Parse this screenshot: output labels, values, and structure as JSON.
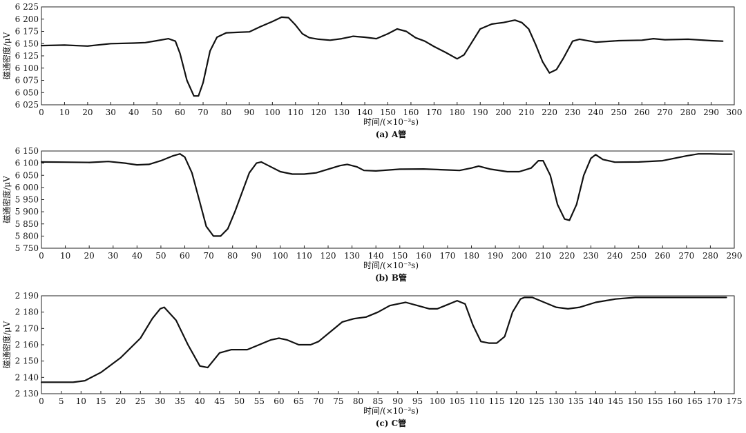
{
  "chart_data": [
    {
      "type": "line",
      "caption": "(a) A管",
      "xlabel": "时间/(×10⁻³s)",
      "ylabel": "磁通密度/μV",
      "xlim": [
        0,
        300
      ],
      "ylim": [
        6025,
        6225
      ],
      "x_ticks": [
        0,
        10,
        20,
        30,
        40,
        50,
        60,
        70,
        80,
        90,
        100,
        110,
        120,
        130,
        140,
        150,
        160,
        170,
        180,
        190,
        200,
        210,
        220,
        230,
        240,
        250,
        260,
        270,
        280,
        290,
        300
      ],
      "x_tick_labels": [
        "0",
        "10",
        "20",
        "30",
        "40",
        "50",
        "60",
        "70",
        "80",
        "90",
        "100",
        "110",
        "120",
        "130",
        "140",
        "150",
        "160",
        "170",
        "180",
        "190",
        "200",
        "210",
        "220",
        "230",
        "240",
        "250",
        "260",
        "270",
        "280",
        "290",
        "300"
      ],
      "y_ticks": [
        6025,
        6050,
        6075,
        6100,
        6125,
        6150,
        6175,
        6200,
        6225
      ],
      "y_tick_labels": [
        "6 025",
        "6 050",
        "6 075",
        "6 100",
        "6 125",
        "6 150",
        "6 175",
        "6 200",
        "6 225"
      ],
      "grid": false,
      "series": [
        {
          "x": [
            0,
            10,
            20,
            30,
            40,
            45,
            50,
            55,
            58,
            60,
            63,
            66,
            68,
            70,
            73,
            76,
            80,
            85,
            90,
            95,
            100,
            104,
            107,
            110,
            113,
            116,
            120,
            125,
            130,
            135,
            140,
            145,
            150,
            154,
            158,
            162,
            166,
            170,
            175,
            180,
            183,
            186,
            190,
            195,
            200,
            205,
            208,
            211,
            214,
            217,
            220,
            223,
            226,
            230,
            233,
            240,
            250,
            260,
            265,
            270,
            280,
            290,
            295
          ],
          "y": [
            6146,
            6147,
            6145,
            6150,
            6151,
            6152,
            6156,
            6160,
            6155,
            6130,
            6075,
            6043,
            6043,
            6070,
            6135,
            6163,
            6172,
            6173,
            6174,
            6185,
            6195,
            6204,
            6203,
            6188,
            6170,
            6162,
            6159,
            6157,
            6160,
            6165,
            6163,
            6160,
            6170,
            6180,
            6175,
            6162,
            6155,
            6144,
            6132,
            6119,
            6127,
            6150,
            6180,
            6190,
            6193,
            6198,
            6193,
            6180,
            6148,
            6113,
            6090,
            6097,
            6120,
            6155,
            6159,
            6153,
            6156,
            6157,
            6160,
            6158,
            6159,
            6156,
            6155
          ]
        }
      ]
    },
    {
      "type": "line",
      "caption": "(b) B管",
      "xlabel": "时间/(×10⁻³s)",
      "ylabel": "磁通密度/μV",
      "xlim": [
        0,
        290
      ],
      "ylim": [
        5750,
        6150
      ],
      "x_ticks": [
        0,
        10,
        20,
        30,
        40,
        50,
        60,
        70,
        80,
        90,
        100,
        110,
        120,
        130,
        140,
        150,
        160,
        170,
        180,
        190,
        200,
        210,
        220,
        230,
        240,
        250,
        260,
        270,
        280,
        290
      ],
      "x_tick_labels": [
        "0",
        "10",
        "20",
        "30",
        "40",
        "50",
        "60",
        "70",
        "80",
        "90",
        "100",
        "110",
        "120",
        "130",
        "140",
        "150",
        "160",
        "170",
        "180",
        "190",
        "200",
        "210",
        "220",
        "230",
        "240",
        "250",
        "260",
        "270",
        "280",
        "290"
      ],
      "y_ticks": [
        5750,
        5800,
        5850,
        5900,
        5950,
        6000,
        6050,
        6100,
        6150
      ],
      "y_tick_labels": [
        "5 750",
        "5 800",
        "5 850",
        "5 900",
        "5 950",
        "6 000",
        "6 050",
        "6 100",
        "6 150"
      ],
      "grid": false,
      "series": [
        {
          "x": [
            0,
            10,
            20,
            28,
            35,
            40,
            45,
            50,
            55,
            58,
            60,
            63,
            66,
            69,
            72,
            75,
            78,
            81,
            84,
            87,
            90,
            92,
            95,
            100,
            105,
            110,
            115,
            120,
            125,
            128,
            132,
            135,
            140,
            150,
            160,
            170,
            175,
            180,
            183,
            188,
            195,
            200,
            205,
            208,
            210,
            213,
            216,
            219,
            221,
            224,
            227,
            230,
            232,
            235,
            240,
            250,
            260,
            270,
            275,
            280,
            285,
            289
          ],
          "y": [
            6105,
            6104,
            6103,
            6107,
            6100,
            6093,
            6095,
            6110,
            6130,
            6138,
            6125,
            6060,
            5950,
            5840,
            5800,
            5800,
            5830,
            5900,
            5980,
            6060,
            6100,
            6105,
            6090,
            6065,
            6055,
            6055,
            6060,
            6075,
            6090,
            6095,
            6085,
            6070,
            6068,
            6075,
            6076,
            6072,
            6070,
            6080,
            6088,
            6075,
            6065,
            6065,
            6080,
            6110,
            6110,
            6050,
            5930,
            5870,
            5865,
            5930,
            6050,
            6120,
            6135,
            6115,
            6104,
            6105,
            6110,
            6130,
            6138,
            6138,
            6137,
            6137
          ]
        }
      ]
    },
    {
      "type": "line",
      "caption": "(c) C管",
      "xlabel": "时间/(×10⁻³s)",
      "ylabel": "磁通密度/μV",
      "xlim": [
        0,
        175
      ],
      "ylim": [
        2130,
        2190
      ],
      "x_ticks": [
        0,
        5,
        10,
        15,
        20,
        25,
        30,
        35,
        40,
        45,
        50,
        55,
        60,
        65,
        70,
        75,
        80,
        85,
        90,
        95,
        100,
        105,
        110,
        115,
        120,
        125,
        130,
        135,
        140,
        145,
        150,
        155,
        160,
        165,
        170,
        175
      ],
      "x_tick_labels": [
        "0",
        "5",
        "10",
        "15",
        "20",
        "25",
        "30",
        "35",
        "40",
        "45",
        "50",
        "55",
        "60",
        "65",
        "70",
        "75",
        "80",
        "85",
        "90",
        "95",
        "100",
        "105",
        "110",
        "115",
        "120",
        "125",
        "130",
        "135",
        "140",
        "145",
        "150",
        "155",
        "160",
        "165",
        "170",
        "175"
      ],
      "y_ticks": [
        2130,
        2140,
        2150,
        2160,
        2170,
        2180,
        2190
      ],
      "y_tick_labels": [
        "2 130",
        "2 140",
        "2 150",
        "2 160",
        "2 170",
        "2 180",
        "2 190"
      ],
      "grid": false,
      "series": [
        {
          "x": [
            0,
            5,
            8,
            11,
            15,
            20,
            25,
            28,
            30,
            31,
            34,
            37,
            40,
            42,
            45,
            48,
            52,
            55,
            58,
            60,
            62,
            65,
            68,
            70,
            73,
            76,
            79,
            82,
            85,
            88,
            90,
            92,
            95,
            98,
            100,
            102,
            105,
            107,
            109,
            111,
            113,
            115,
            117,
            119,
            121,
            122,
            124,
            127,
            130,
            133,
            136,
            140,
            145,
            150,
            155,
            160,
            165,
            170,
            173
          ],
          "y": [
            2137,
            2137,
            2137,
            2138,
            2143,
            2152,
            2164,
            2176,
            2182,
            2183,
            2175,
            2160,
            2147,
            2146,
            2155,
            2157,
            2157,
            2160,
            2163,
            2164,
            2163,
            2160,
            2160,
            2162,
            2168,
            2174,
            2176,
            2177,
            2180,
            2184,
            2185,
            2186,
            2184,
            2182,
            2182,
            2184,
            2187,
            2185,
            2172,
            2162,
            2161,
            2161,
            2165,
            2180,
            2188,
            2189,
            2189,
            2186,
            2183,
            2182,
            2183,
            2186,
            2188,
            2189,
            2189,
            2189,
            2189,
            2189,
            2189
          ]
        }
      ]
    }
  ]
}
